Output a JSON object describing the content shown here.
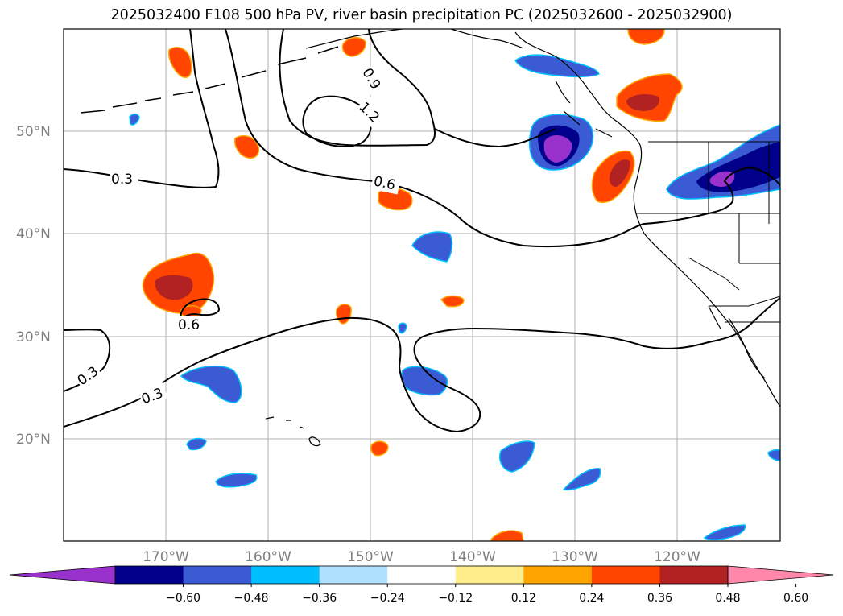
{
  "title": "2025032400 F108 500 hPa PV, river basin precipitation PC (2025032600 - 2025032900)",
  "map": {
    "lat_labels": [
      "50°N",
      "40°N",
      "30°N",
      "20°N"
    ],
    "lon_labels": [
      "170°W",
      "160°W",
      "150°W",
      "140°W",
      "130°W",
      "120°W"
    ],
    "contour_labels": [
      "0.3",
      "0.3",
      "0.3",
      "0.6",
      "0.6",
      "0.9",
      "1.2"
    ]
  },
  "colorbar": {
    "ticks": [
      "−0.60",
      "−0.48",
      "−0.36",
      "−0.24",
      "−0.12",
      "0.12",
      "0.24",
      "0.36",
      "0.48",
      "0.60"
    ],
    "colors": [
      "#9932cc",
      "#00008b",
      "#3a5bd4",
      "#00bfff",
      "#b0e2ff",
      "#ffffff",
      "#ffec8b",
      "#ffa500",
      "#ff4500",
      "#b22222",
      "#ff88aa"
    ]
  }
}
